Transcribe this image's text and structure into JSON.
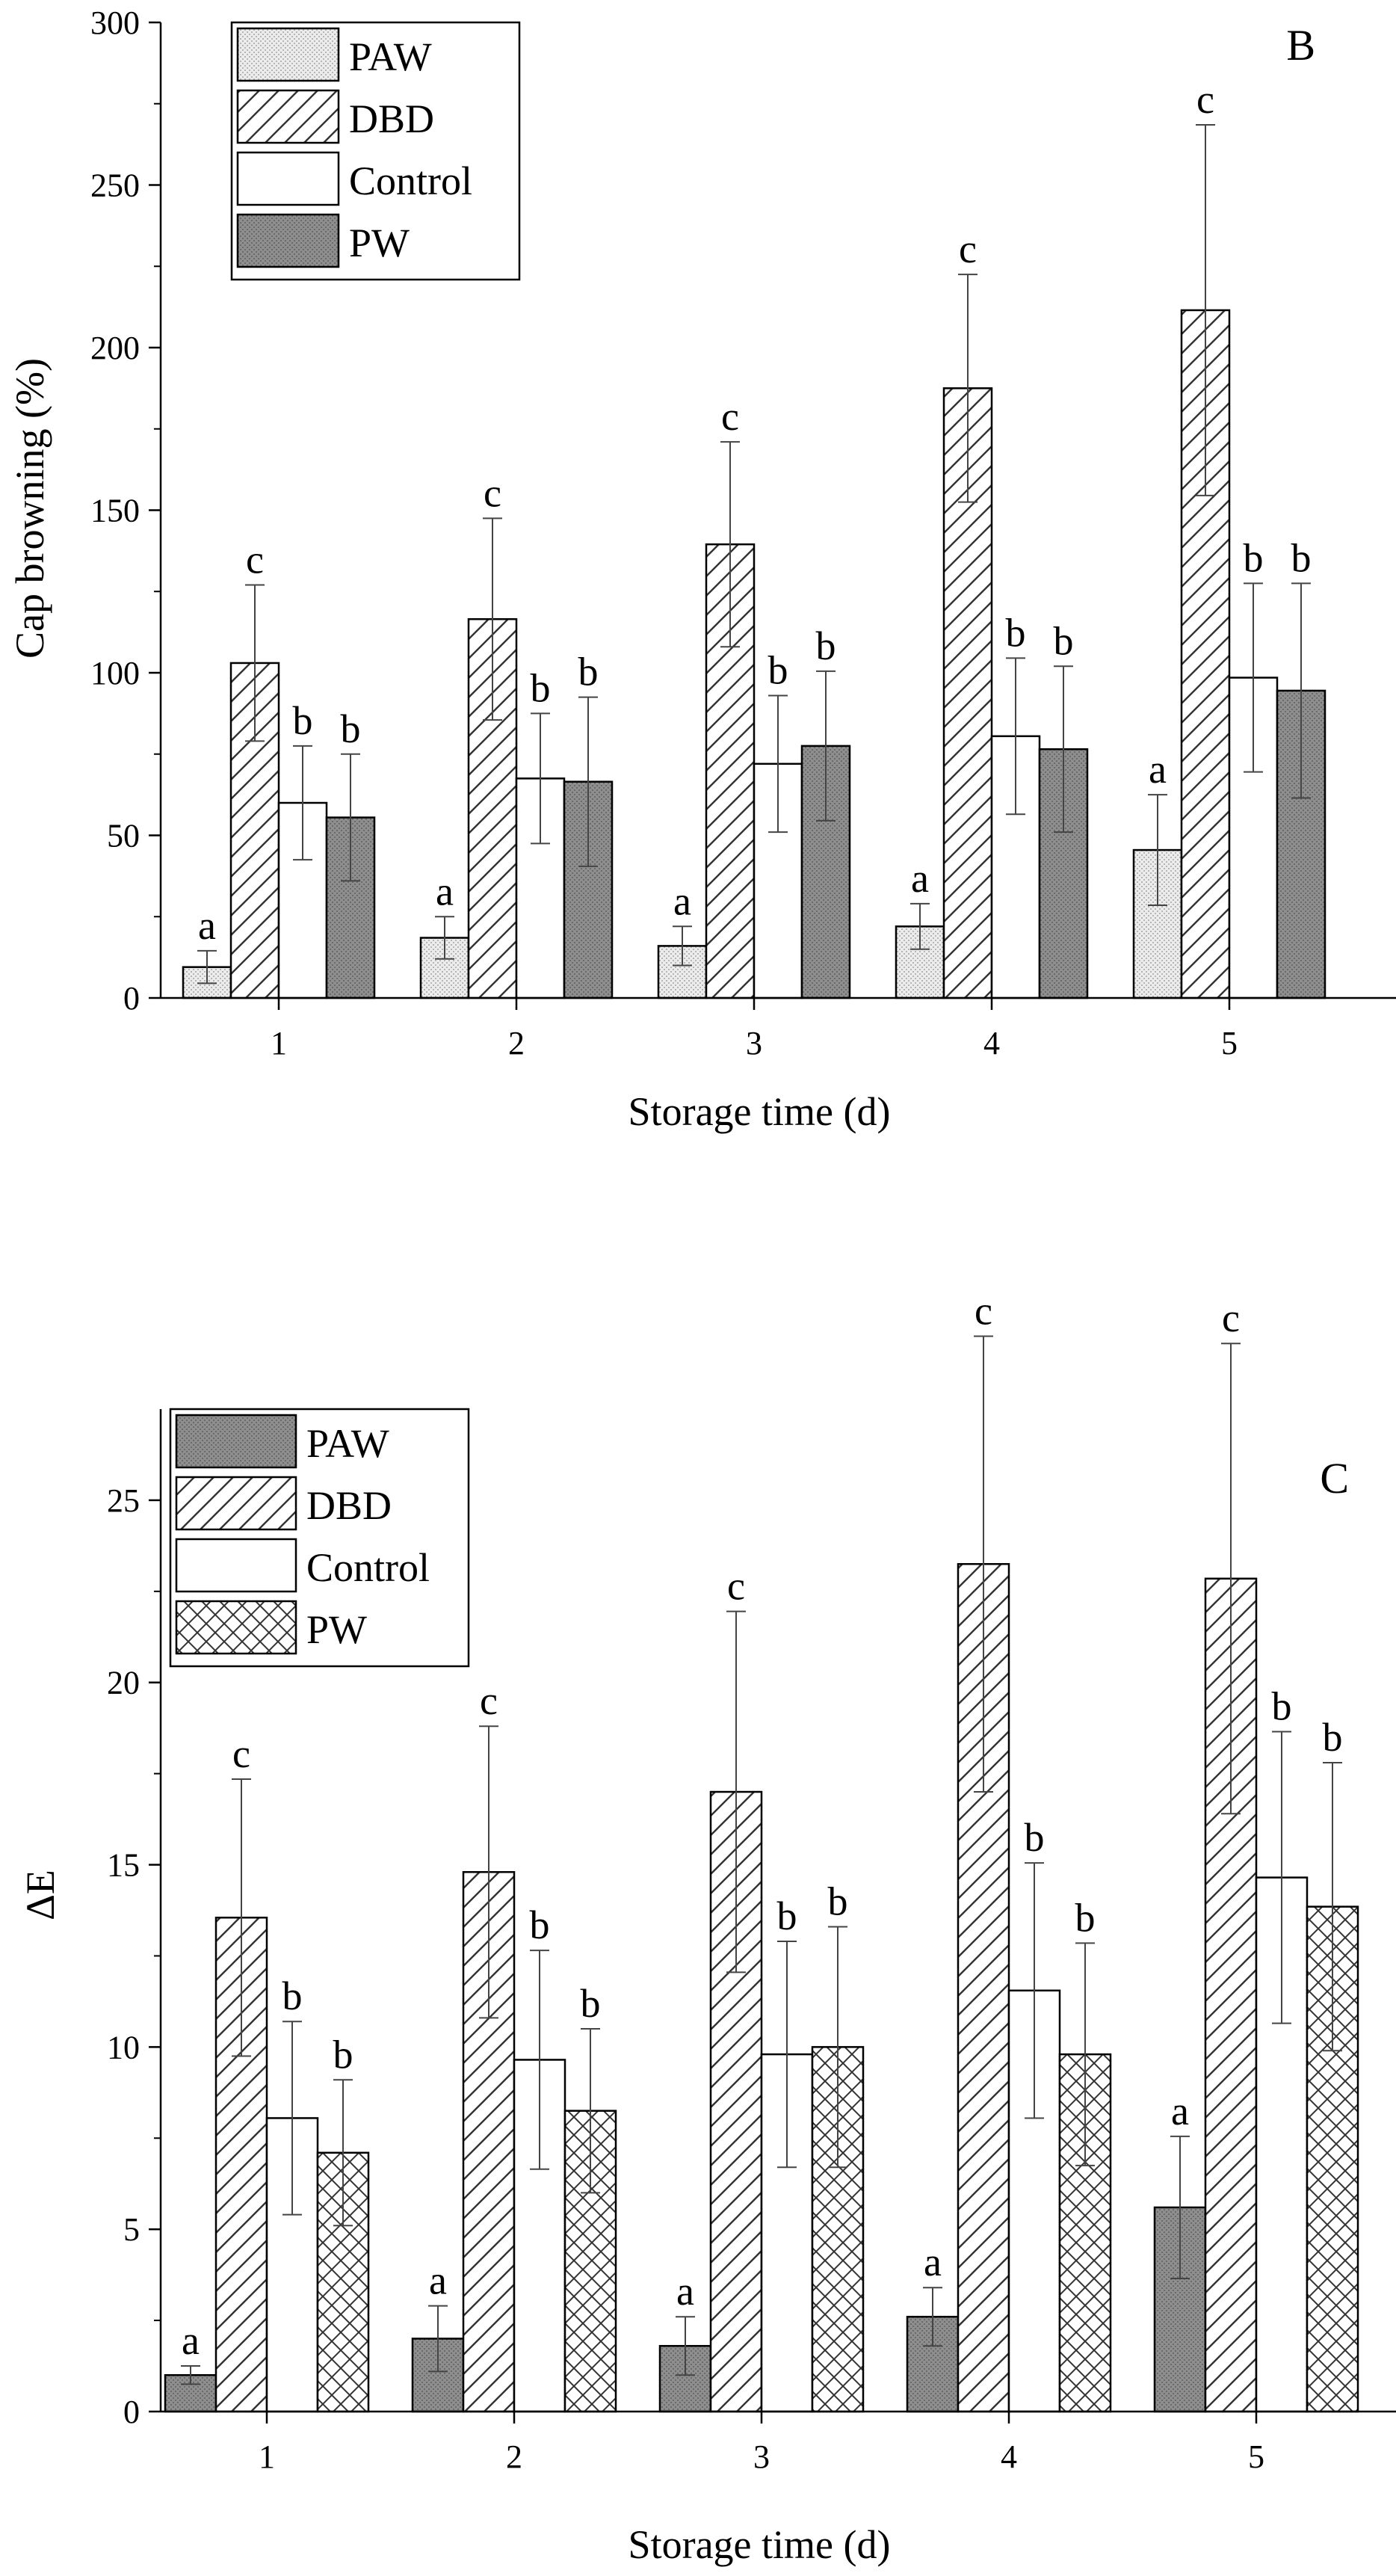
{
  "chart_data": [
    {
      "type": "bar",
      "panel_label": "B",
      "xlabel": "Storage time (d)",
      "ylabel": "Cap browning (%)",
      "ylim": [
        0,
        300
      ],
      "yticks": [
        0,
        50,
        100,
        150,
        200,
        250,
        300
      ],
      "categories": [
        "1",
        "2",
        "3",
        "4",
        "5"
      ],
      "legend_position": "top-left",
      "series": [
        {
          "name": "PAW",
          "pattern": "dotted-light",
          "values": [
            9.5,
            18.5,
            16,
            22,
            45.5
          ],
          "errors": [
            5,
            6.5,
            6,
            7,
            17
          ],
          "letters": [
            "a",
            "a",
            "a",
            "a",
            "a"
          ]
        },
        {
          "name": "DBD",
          "pattern": "diagonal",
          "values": [
            103,
            116.5,
            139.5,
            187.5,
            211.5
          ],
          "errors": [
            24,
            31,
            31.5,
            35,
            57
          ],
          "letters": [
            "c",
            "c",
            "c",
            "c",
            "c"
          ]
        },
        {
          "name": "Control",
          "pattern": "white",
          "values": [
            60,
            67.5,
            72,
            80.5,
            98.5
          ],
          "errors": [
            17.5,
            20,
            21,
            24,
            29
          ],
          "letters": [
            "b",
            "b",
            "b",
            "b",
            "b"
          ]
        },
        {
          "name": "PW",
          "pattern": "dotted-dark",
          "values": [
            55.5,
            66.5,
            77.5,
            76.5,
            94.5
          ],
          "errors": [
            19.5,
            26,
            23,
            25.5,
            33
          ],
          "letters": [
            "b",
            "b",
            "b",
            "b",
            "b"
          ]
        }
      ]
    },
    {
      "type": "bar",
      "panel_label": "C",
      "xlabel": "Storage time (d)",
      "ylabel": "ΔE",
      "ylim": [
        0,
        27.5
      ],
      "yticks": [
        0,
        5,
        10,
        15,
        20,
        25
      ],
      "categories": [
        "1",
        "2",
        "3",
        "4",
        "5"
      ],
      "legend_position": "top-left",
      "series": [
        {
          "name": "PAW",
          "pattern": "dotted-dark",
          "values": [
            1.0,
            2.0,
            1.8,
            2.6,
            5.6
          ],
          "errors": [
            0.25,
            0.9,
            0.8,
            0.8,
            1.95
          ],
          "letters": [
            "a",
            "a",
            "a",
            "a",
            "a"
          ]
        },
        {
          "name": "DBD",
          "pattern": "diagonal",
          "values": [
            13.55,
            14.8,
            17.0,
            23.25,
            22.85
          ],
          "errors": [
            3.8,
            4.0,
            4.95,
            6.25,
            6.45
          ],
          "letters": [
            "c",
            "c",
            "c",
            "c",
            "c"
          ]
        },
        {
          "name": "Control",
          "pattern": "white",
          "values": [
            8.05,
            9.65,
            9.8,
            11.55,
            14.65
          ],
          "errors": [
            2.65,
            3.0,
            3.1,
            3.5,
            4.0
          ],
          "letters": [
            "b",
            "b",
            "b",
            "b",
            "b"
          ]
        },
        {
          "name": "PW",
          "pattern": "crosshatch",
          "values": [
            7.1,
            8.25,
            10.0,
            9.8,
            13.85
          ],
          "errors": [
            2.0,
            2.25,
            3.3,
            3.05,
            3.95
          ],
          "letters": [
            "b",
            "b",
            "b",
            "b",
            "b"
          ]
        }
      ]
    }
  ]
}
